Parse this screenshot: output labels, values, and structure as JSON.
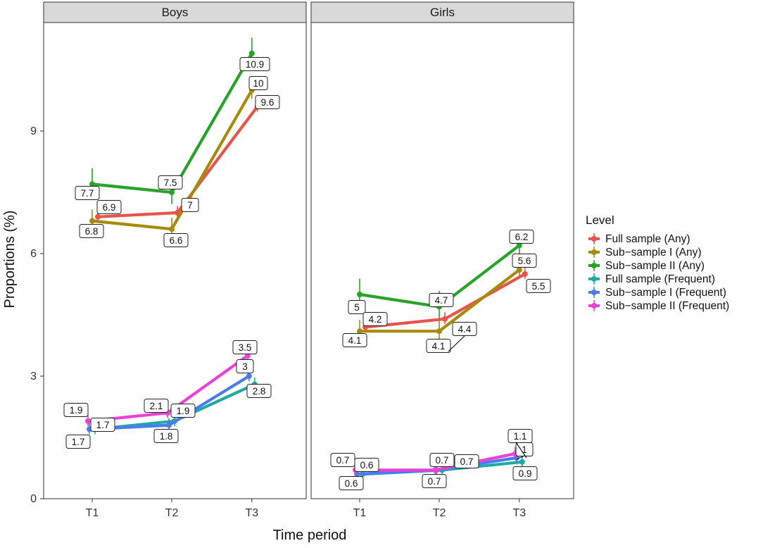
{
  "chart_data": {
    "type": "line",
    "xlabel": "Time period",
    "ylabel": "Proportions (%)",
    "categories": [
      "T1",
      "T2",
      "T3"
    ],
    "ylim": [
      0,
      12
    ],
    "yticks": [
      0,
      3,
      6,
      9
    ],
    "facets": [
      "Boys",
      "Girls"
    ],
    "legend": {
      "title": "Level",
      "position": "right"
    },
    "colors": {
      "full_any": "#E8534B",
      "sub1_any": "#A78A0A",
      "sub2_any": "#27A327",
      "full_freq": "#1FA9A5",
      "sub1_freq": "#4A7BEF",
      "sub2_freq": "#EC40D8"
    },
    "series": [
      {
        "key": "full_any",
        "name": "Full sample (Any)",
        "Boys": [
          6.9,
          7.0,
          9.6
        ],
        "Girls": [
          4.2,
          4.4,
          5.5
        ]
      },
      {
        "key": "sub1_any",
        "name": "Sub−sample I (Any)",
        "Boys": [
          6.8,
          6.6,
          10.0
        ],
        "Girls": [
          4.1,
          4.1,
          5.6
        ]
      },
      {
        "key": "sub2_any",
        "name": "Sub−sample II (Any)",
        "Boys": [
          7.7,
          7.5,
          10.9
        ],
        "Girls": [
          5.0,
          4.7,
          6.2
        ]
      },
      {
        "key": "full_freq",
        "name": "Full sample (Frequent)",
        "Boys": [
          1.7,
          1.9,
          2.8
        ],
        "Girls": [
          0.6,
          0.7,
          0.9
        ]
      },
      {
        "key": "sub1_freq",
        "name": "Sub−sample I (Frequent)",
        "Boys": [
          1.7,
          1.8,
          3.0
        ],
        "Girls": [
          0.6,
          0.7,
          1.0
        ]
      },
      {
        "key": "sub2_freq",
        "name": "Sub−sample II (Frequent)",
        "Boys": [
          1.9,
          2.1,
          3.5
        ],
        "Girls": [
          0.7,
          0.7,
          1.1
        ]
      }
    ],
    "data_labels": [
      {
        "facet": "Boys",
        "text": "7.7"
      },
      {
        "facet": "Boys",
        "text": "7.5"
      },
      {
        "facet": "Boys",
        "text": "10.9"
      },
      {
        "facet": "Boys",
        "text": "10"
      },
      {
        "facet": "Boys",
        "text": "9.6"
      },
      {
        "facet": "Boys",
        "text": "6.9"
      },
      {
        "facet": "Boys",
        "text": "7"
      },
      {
        "facet": "Boys",
        "text": "6.8"
      },
      {
        "facet": "Boys",
        "text": "6.6"
      },
      {
        "facet": "Boys",
        "text": "3.5"
      },
      {
        "facet": "Boys",
        "text": "3"
      },
      {
        "facet": "Boys",
        "text": "2.8"
      },
      {
        "facet": "Boys",
        "text": "1.9"
      },
      {
        "facet": "Boys",
        "text": "1.7"
      },
      {
        "facet": "Boys",
        "text": "2.1"
      },
      {
        "facet": "Boys",
        "text": "1.9"
      },
      {
        "facet": "Boys",
        "text": "1.7"
      },
      {
        "facet": "Boys",
        "text": "1.8"
      },
      {
        "facet": "Girls",
        "text": "6.2"
      },
      {
        "facet": "Girls",
        "text": "5.6"
      },
      {
        "facet": "Girls",
        "text": "5.5"
      },
      {
        "facet": "Girls",
        "text": "5"
      },
      {
        "facet": "Girls",
        "text": "4.7"
      },
      {
        "facet": "Girls",
        "text": "4.2"
      },
      {
        "facet": "Girls",
        "text": "4.4"
      },
      {
        "facet": "Girls",
        "text": "4.1"
      },
      {
        "facet": "Girls",
        "text": "4.1"
      },
      {
        "facet": "Girls",
        "text": "1.1"
      },
      {
        "facet": "Girls",
        "text": "1"
      },
      {
        "facet": "Girls",
        "text": "0.9"
      },
      {
        "facet": "Girls",
        "text": "0.7"
      },
      {
        "facet": "Girls",
        "text": "0.6"
      },
      {
        "facet": "Girls",
        "text": "0.7"
      },
      {
        "facet": "Girls",
        "text": "0.7"
      },
      {
        "facet": "Girls",
        "text": "0.6"
      },
      {
        "facet": "Girls",
        "text": "0.7"
      }
    ]
  }
}
